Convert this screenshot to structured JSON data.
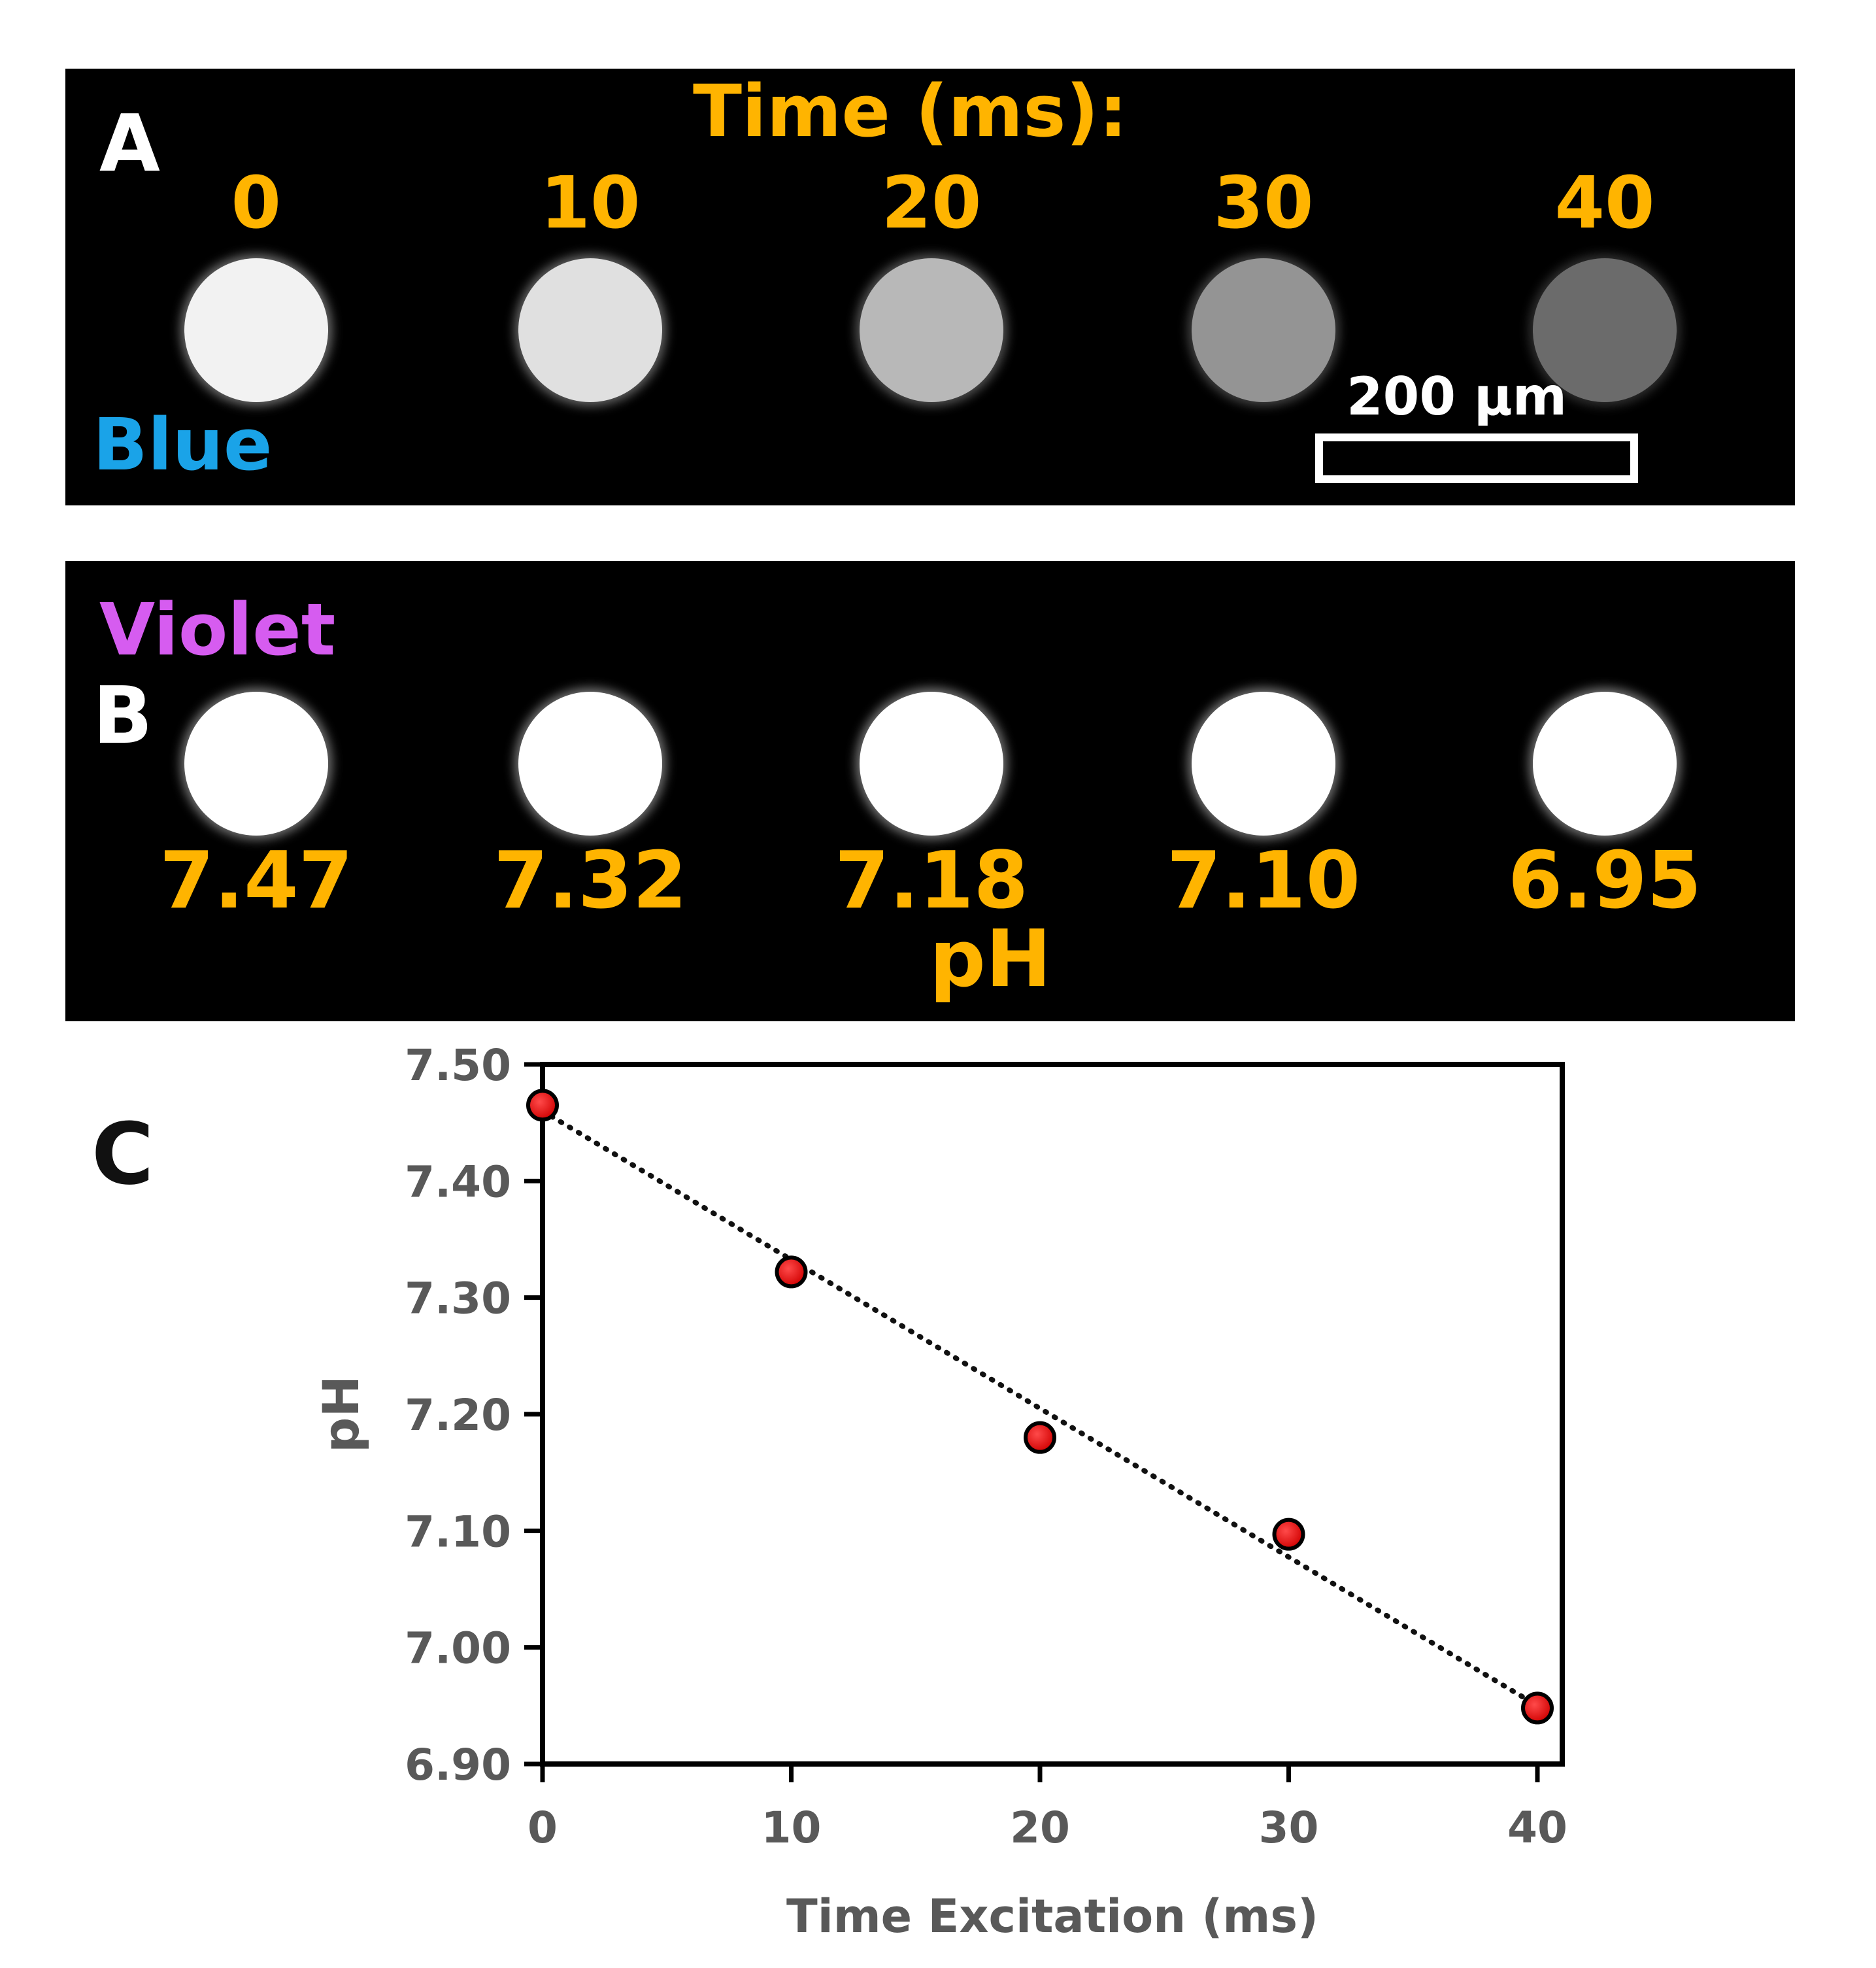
{
  "panel_a": {
    "letter": "A",
    "time_title": "Time (ms):",
    "time_labels": [
      "0",
      "10",
      "20",
      "30",
      "40"
    ],
    "channel_label": "Blue",
    "channel_color": "#1aa3e8",
    "scale_bar_label": "200 µm",
    "spot_brightness": [
      0.95,
      0.88,
      0.72,
      0.58,
      0.42
    ]
  },
  "panel_b": {
    "letter": "B",
    "channel_label": "Violet",
    "channel_color": "#d65cf0",
    "ph_labels": [
      "7.47",
      "7.32",
      "7.18",
      "7.10",
      "6.95"
    ],
    "ph_caption": "pH",
    "spot_brightness": [
      1.0,
      1.0,
      1.0,
      1.0,
      1.0
    ]
  },
  "panel_c": {
    "letter": "C"
  },
  "colors": {
    "accent_orange": "#ffb400",
    "point_fill": "#e00000",
    "axis_text": "#595959"
  },
  "chart_data": {
    "type": "scatter",
    "title": "",
    "xlabel": "Time Excitation (ms)",
    "ylabel": "pH",
    "x": [
      0,
      10,
      20,
      30,
      40
    ],
    "y": [
      7.465,
      7.322,
      7.18,
      7.097,
      6.948
    ],
    "xlim": [
      0,
      40
    ],
    "ylim": [
      6.9,
      7.5
    ],
    "x_ticks": [
      "0",
      "10",
      "20",
      "30",
      "40"
    ],
    "y_ticks": [
      "6.90",
      "7.00",
      "7.10",
      "7.20",
      "7.30",
      "7.40",
      "7.50"
    ],
    "trendline": {
      "type": "linear",
      "style": "dotted",
      "y_start": 7.46,
      "y_end": 6.95
    },
    "grid": false,
    "legend": "none"
  }
}
